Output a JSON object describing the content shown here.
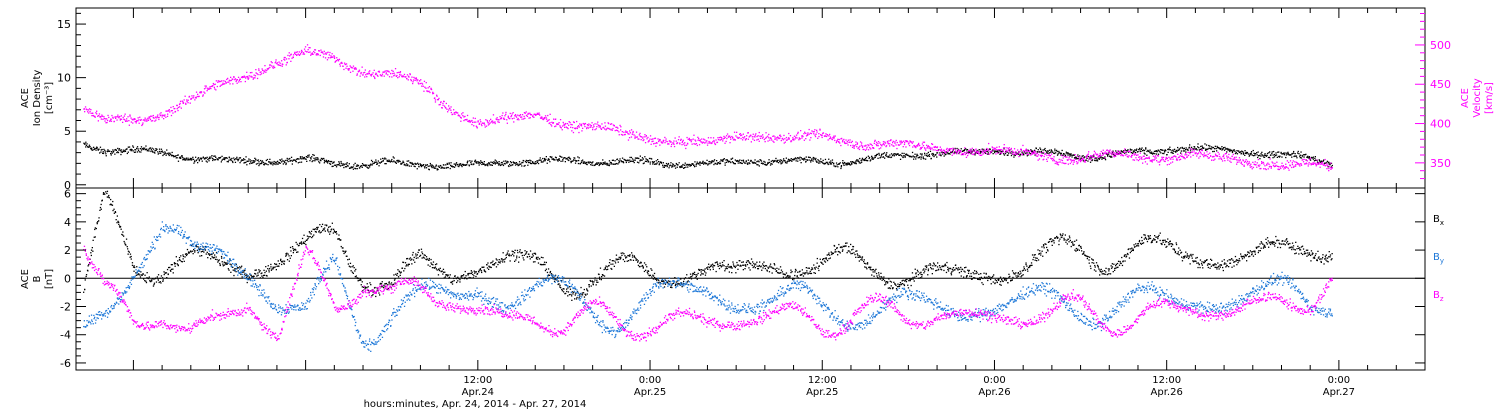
{
  "colors": {
    "density": "#000000",
    "velocity": "#ff00ff",
    "bx": "#000000",
    "by": "#1e78d8",
    "bz": "#ff00ff",
    "axis": "#000000",
    "velocity_axis": "#ff00ff"
  },
  "chart_data": [
    {
      "type": "scatter",
      "panel": "plasma",
      "title": "",
      "ylabel_left": [
        "ACE",
        "Ion Density",
        "[cm⁻³]"
      ],
      "ylabel_right": [
        "ACE",
        "Velocity",
        "[km/s]"
      ],
      "xlim_hours": [
        -16,
        78
      ],
      "ylim_left": [
        -0.3,
        16.5
      ],
      "yticks_left": [
        0,
        5,
        10,
        15
      ],
      "ylim_right": [
        318,
        547
      ],
      "yticks_right": [
        350,
        400,
        450,
        500
      ],
      "series": [
        {
          "name": "",
          "axis": "left",
          "t_hours": [
            -15.5,
            -14,
            -12,
            -10,
            -8,
            -6,
            -4,
            -2,
            0,
            2,
            4,
            6,
            8,
            10,
            12,
            14,
            16,
            18,
            20,
            22,
            24,
            26,
            28,
            30,
            32,
            34,
            36,
            38,
            40,
            42,
            44,
            46,
            48,
            50,
            52,
            54,
            56,
            58,
            60,
            62,
            64,
            66,
            68,
            70,
            71.5
          ],
          "values": [
            3.8,
            3.4,
            3.2,
            3.0,
            2.6,
            2.4,
            2.3,
            2.2,
            2.4,
            2.1,
            2.0,
            2.0,
            1.9,
            1.8,
            2.0,
            2.1,
            2.2,
            2.3,
            2.3,
            2.2,
            2.1,
            2.0,
            2.1,
            2.2,
            2.2,
            2.3,
            2.2,
            2.3,
            2.5,
            2.8,
            3.0,
            3.1,
            3.2,
            3.1,
            3.0,
            2.8,
            2.8,
            3.0,
            3.3,
            3.5,
            3.3,
            3.0,
            2.8,
            2.5,
            2.2
          ]
        },
        {
          "name": "",
          "axis": "right",
          "t_hours": [
            -15.5,
            -14,
            -12,
            -10,
            -8,
            -6,
            -4,
            -2,
            0,
            2,
            4,
            6,
            8,
            10,
            12,
            14,
            16,
            18,
            20,
            22,
            24,
            26,
            28,
            30,
            32,
            34,
            36,
            38,
            40,
            42,
            44,
            46,
            48,
            50,
            52,
            54,
            56,
            58,
            60,
            62,
            64,
            66,
            68,
            70,
            71.5
          ],
          "values": [
            420,
            400,
            405,
            415,
            432,
            450,
            462,
            478,
            490,
            483,
            470,
            462,
            450,
            420,
            400,
            407,
            412,
            403,
            395,
            386,
            384,
            378,
            376,
            384,
            385,
            381,
            382,
            380,
            376,
            372,
            368,
            365,
            367,
            362,
            360,
            358,
            358,
            359,
            358,
            362,
            356,
            352,
            349,
            346,
            343
          ]
        }
      ]
    },
    {
      "type": "scatter",
      "panel": "magnetic",
      "title": "",
      "ylabel_left": [
        "ACE",
        "B",
        "[nT]"
      ],
      "xlim_hours": [
        -16,
        78
      ],
      "ylim": [
        -6.5,
        6.4
      ],
      "yticks": [
        -6,
        -4,
        -2,
        0,
        2,
        4,
        6
      ],
      "zero_line": true,
      "legend_position": "right",
      "series": [
        {
          "name": "Bx",
          "t_hours": [
            -15.5,
            -14,
            -12,
            -10,
            -8,
            -6,
            -4,
            -2,
            0,
            2,
            4,
            6,
            8,
            10,
            12,
            14,
            16,
            18,
            20,
            22,
            24,
            26,
            28,
            30,
            32,
            34,
            36,
            38,
            40,
            42,
            44,
            46,
            48,
            50,
            52,
            54,
            56,
            58,
            60,
            62,
            64,
            66,
            68,
            70,
            71.5
          ],
          "values": [
            -1.5,
            5.0,
            1.5,
            1.0,
            1.5,
            1.0,
            0.5,
            1.2,
            2.0,
            3.2,
            1.0,
            -0.5,
            0.8,
            0.2,
            0.8,
            1.5,
            1.0,
            0.0,
            0.5,
            0.2,
            0.0,
            0.5,
            0.8,
            0.6,
            1.0,
            1.2,
            0.6,
            0.8,
            1.0,
            0.5,
            0.4,
            0.3,
            0.2,
            0.8,
            1.5,
            2.2,
            2.0,
            2.2,
            1.8,
            1.5,
            1.2,
            1.6,
            2.0,
            3.0,
            2.6
          ]
        },
        {
          "name": "By",
          "t_hours": [
            -15.5,
            -14,
            -12,
            -10,
            -8,
            -6,
            -4,
            -2,
            0,
            2,
            4,
            6,
            8,
            10,
            12,
            14,
            16,
            18,
            20,
            22,
            24,
            26,
            28,
            30,
            32,
            34,
            36,
            38,
            40,
            42,
            44,
            46,
            48,
            50,
            52,
            54,
            56,
            58,
            60,
            62,
            64,
            66,
            68,
            70,
            71.5
          ],
          "values": [
            -4.5,
            -2.0,
            2.0,
            3.5,
            1.5,
            2.0,
            0.5,
            -2.0,
            -3.0,
            1.0,
            -3.2,
            -2.0,
            -1.5,
            -1.5,
            -0.8,
            -1.8,
            -1.0,
            -1.2,
            -1.6,
            -2.0,
            -1.5,
            -1.2,
            -0.8,
            -1.8,
            -2.0,
            -1.5,
            -1.8,
            -1.6,
            -2.0,
            -2.2,
            -2.0,
            -2.4,
            -2.0,
            -1.8,
            -1.6,
            -1.4,
            -1.5,
            -1.8,
            -2.0,
            -1.6,
            -1.8,
            -1.2,
            -1.0,
            -1.4,
            -0.5
          ]
        },
        {
          "name": "Bz",
          "t_hours": [
            -15.5,
            -14,
            -12,
            -10,
            -8,
            -6,
            -4,
            -2,
            0,
            2,
            4,
            6,
            8,
            10,
            12,
            14,
            16,
            18,
            20,
            22,
            24,
            26,
            28,
            30,
            32,
            34,
            36,
            38,
            40,
            42,
            44,
            46,
            48,
            50,
            52,
            54,
            56,
            58,
            60,
            62,
            64,
            66,
            68,
            70,
            71.5
          ],
          "values": [
            3.0,
            -1.0,
            -4.0,
            -2.0,
            -3.5,
            -3.0,
            -2.0,
            -4.0,
            1.5,
            -2.0,
            0.5,
            -1.5,
            -1.0,
            -1.5,
            -2.2,
            -2.8,
            -2.6,
            -3.2,
            -3.0,
            -3.2,
            -2.8,
            -3.0,
            -3.2,
            -3.0,
            -2.8,
            -2.6,
            -2.8,
            -2.5,
            -2.6,
            -2.8,
            -2.4,
            -2.6,
            -2.8,
            -2.5,
            -2.6,
            -2.4,
            -2.5,
            -2.6,
            -2.4,
            -2.2,
            -2.4,
            -2.0,
            -1.6,
            -1.0,
            0.0
          ]
        }
      ]
    }
  ],
  "x_axis": {
    "ticks": [
      {
        "hours": 12,
        "line1": "12:00",
        "line2": "Apr.24"
      },
      {
        "hours": 24,
        "line1": "0:00",
        "line2": "Apr.25"
      },
      {
        "hours": 36,
        "line1": "12:00",
        "line2": "Apr.25"
      },
      {
        "hours": 48,
        "line1": "0:00",
        "line2": "Apr.26"
      },
      {
        "hours": 60,
        "line1": "12:00",
        "line2": "Apr.26"
      },
      {
        "hours": 72,
        "line1": "0:00",
        "line2": "Apr.27"
      }
    ],
    "label": "hours:minutes, Apr. 24, 2014 - Apr. 27, 2014"
  },
  "legend": {
    "bx": {
      "main": "B",
      "sub": "x"
    },
    "by": {
      "main": "B",
      "sub": "y"
    },
    "bz": {
      "main": "B",
      "sub": "z"
    }
  }
}
